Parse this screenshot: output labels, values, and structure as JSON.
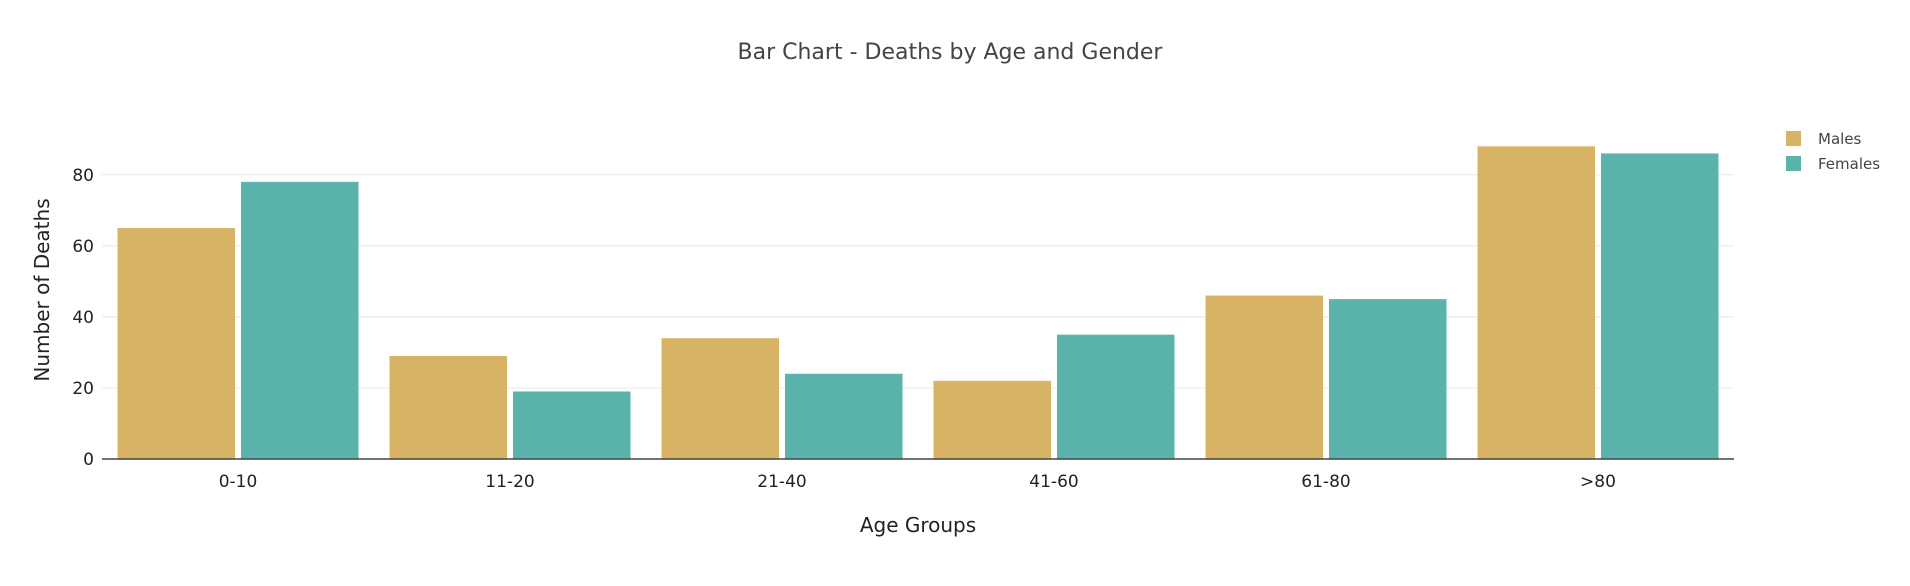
{
  "chart_data": {
    "type": "bar",
    "title": "Bar Chart - Deaths by Age and Gender",
    "xlabel": "Age Groups",
    "ylabel": "Number of Deaths",
    "categories": [
      "0-10",
      "11-20",
      "21-40",
      "41-60",
      "61-80",
      ">80"
    ],
    "series": [
      {
        "name": "Males",
        "color": "#D8B365",
        "values": [
          65,
          29,
          34,
          22,
          46,
          88
        ]
      },
      {
        "name": "Females",
        "color": "#5AB4AC",
        "values": [
          78,
          19,
          24,
          35,
          45,
          86
        ]
      }
    ],
    "yticks": [
      0,
      20,
      40,
      60,
      80
    ],
    "ylim": [
      0,
      92.6
    ],
    "grid": true,
    "legend_position": "top-right"
  }
}
